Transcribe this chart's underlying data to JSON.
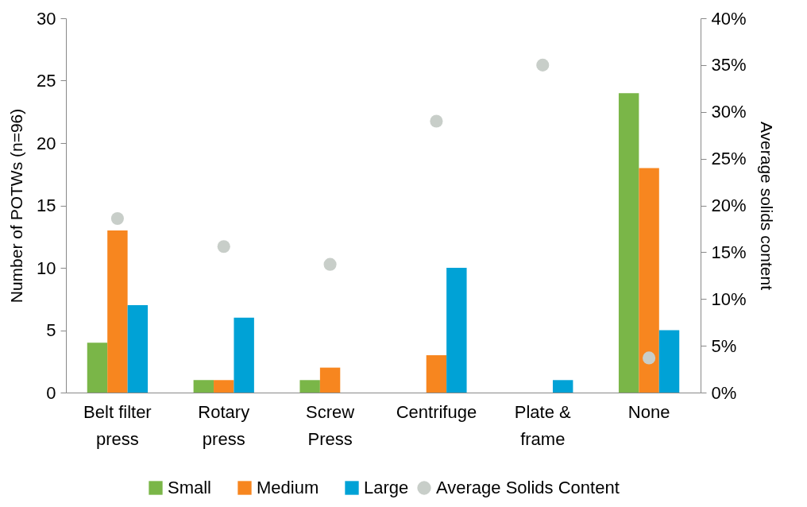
{
  "chart_data": {
    "type": "bar",
    "categories": [
      "Belt filter press",
      "Rotary press",
      "Screw Press",
      "Centrifuge",
      "Plate & frame",
      "None"
    ],
    "series": [
      {
        "name": "Small",
        "color": "#7ab648",
        "values": [
          4,
          1,
          1,
          0,
          0,
          24
        ]
      },
      {
        "name": "Medium",
        "color": "#f7861f",
        "values": [
          13,
          1,
          2,
          3,
          0,
          18
        ]
      },
      {
        "name": "Large",
        "color": "#00a2d6",
        "values": [
          7,
          6,
          0,
          10,
          1,
          5
        ]
      },
      {
        "name": "Average Solids Content",
        "type": "scatter",
        "axis": "y2",
        "marker": "circle",
        "color": "#c8cec9",
        "values": [
          18.6,
          15.6,
          13.7,
          29.0,
          35.0,
          3.7
        ]
      }
    ],
    "ylabel": "Number of POTWs (n=96)",
    "y2label": "Average solids content",
    "ylim": [
      0,
      30
    ],
    "yticks": [
      0,
      5,
      10,
      15,
      20,
      25,
      30
    ],
    "y2lim": [
      0,
      40
    ],
    "y2ticks": [
      {
        "value": 0,
        "label": "0%"
      },
      {
        "value": 5,
        "label": "5%"
      },
      {
        "value": 10,
        "label": "10%"
      },
      {
        "value": 15,
        "label": "15%"
      },
      {
        "value": 20,
        "label": "20%"
      },
      {
        "value": 25,
        "label": "25%"
      },
      {
        "value": 30,
        "label": "30%"
      },
      {
        "value": 35,
        "label": "35%"
      },
      {
        "value": 40,
        "label": "40%"
      }
    ],
    "legend": "bottom",
    "grid": false
  }
}
